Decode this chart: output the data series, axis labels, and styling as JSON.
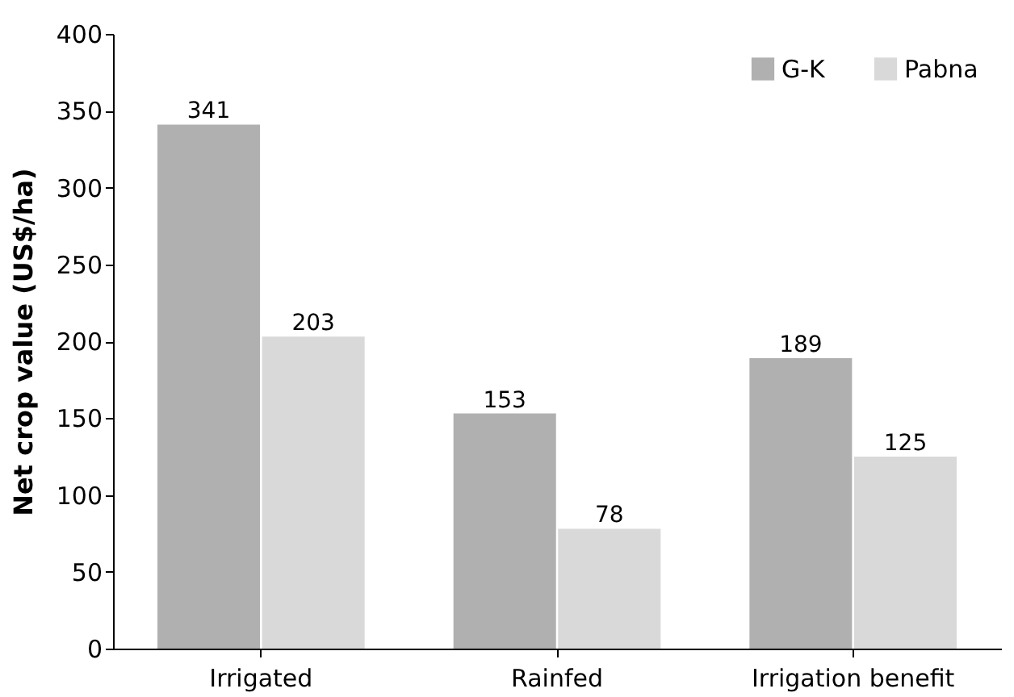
{
  "chart_data": {
    "type": "bar",
    "ylabel": "Net crop value (US$/ha)",
    "categories": [
      "Irrigated",
      "Rainfed",
      "Irrigation benefit"
    ],
    "series": [
      {
        "name": "G-K",
        "color": "#b0b0b0",
        "values": [
          341,
          153,
          189
        ]
      },
      {
        "name": "Pabna",
        "color": "#d9d9d9",
        "values": [
          203,
          78,
          125
        ]
      }
    ],
    "ylim": [
      0,
      400
    ],
    "yticks": [
      0,
      50,
      100,
      150,
      200,
      250,
      300,
      350,
      400
    ],
    "data_labels": true,
    "legend": "top right",
    "grid": false
  }
}
